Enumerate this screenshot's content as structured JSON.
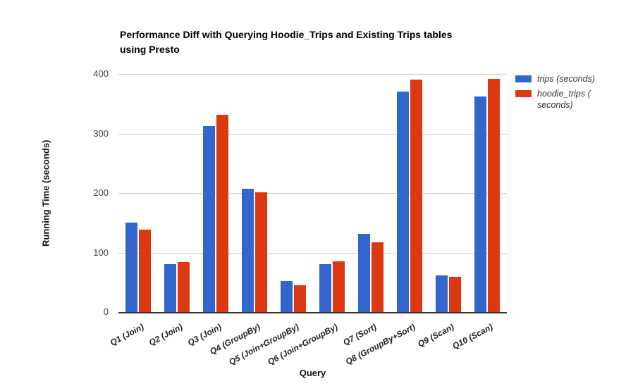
{
  "title_lines": [
    "Performance Diff with Querying Hoodie_Trips and Existing Trips tables",
    "using Presto"
  ],
  "axes": {
    "x_title": "Query",
    "y_title": "Running Time (seconds)"
  },
  "legend": {
    "items": [
      {
        "series": 0,
        "lines": [
          "trips (seconds)"
        ]
      },
      {
        "series": 1,
        "lines": [
          "hoodie_trips (",
          "seconds)"
        ]
      }
    ]
  },
  "chart_data": {
    "type": "bar",
    "title": "Performance Diff with Querying Hoodie_Trips and Existing Trips tables using Presto",
    "xlabel": "Query",
    "ylabel": "Running Time (seconds)",
    "categories": [
      "Q1 (Join)",
      "Q2 (Join)",
      "Q3 (Join)",
      "Q4 (GroupBy)",
      "Q5 (Join+GroupBy)",
      "Q6 (Join+GroupBy)",
      "Q7 (Sort)",
      "Q8 (GroupBy+Sort)",
      "Q9 (Scan)",
      "Q10 (Scan)"
    ],
    "series": [
      {
        "name": "trips (seconds)",
        "color": "#3366CC",
        "values": [
          150,
          80,
          312,
          207,
          52,
          80,
          131,
          370,
          61,
          362
        ]
      },
      {
        "name": "hoodie_trips (seconds)",
        "color": "#DC3912",
        "values": [
          138,
          84,
          331,
          201,
          45,
          85,
          117,
          390,
          59,
          392
        ]
      }
    ],
    "ylim": [
      0,
      400
    ],
    "yticks": [
      0,
      100,
      200,
      300,
      400
    ],
    "grid": true,
    "legend_position": "right",
    "gridline_color": "#cccccc",
    "baseline_color": "#333333"
  }
}
